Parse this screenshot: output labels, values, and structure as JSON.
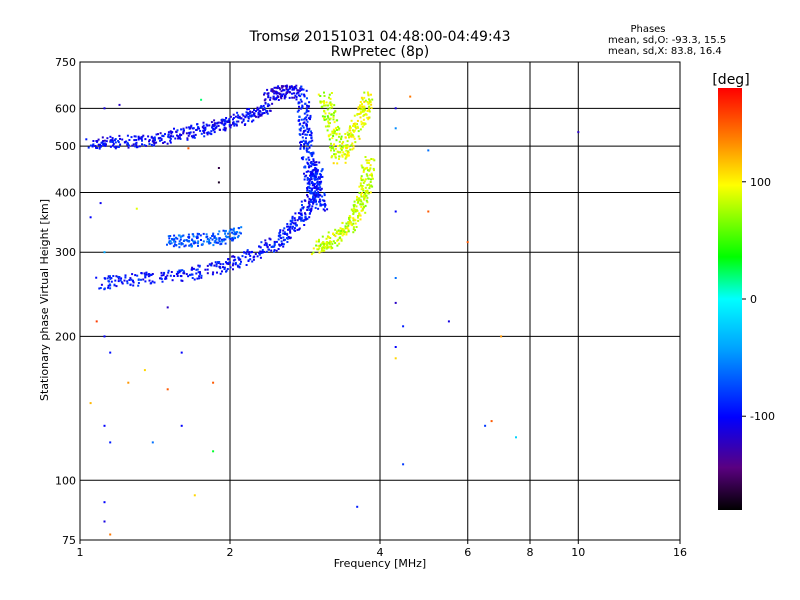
{
  "chart_data": {
    "type": "scatter",
    "title": "Tromsø 20151031 04:48:00-04:49:43",
    "subtitle": "RwPretec (8p)",
    "xlabel": "Frequency [MHz]",
    "ylabel": "Stationary phase Virtual Height [km]",
    "x_scale": "log",
    "y_scale": "log",
    "xlim": [
      1,
      16
    ],
    "ylim": [
      75,
      750
    ],
    "x_ticks": [
      "1",
      "2",
      "4",
      "6",
      "8",
      "10",
      "16"
    ],
    "y_ticks": [
      "75",
      "100",
      "200",
      "300",
      "400",
      "500",
      "600",
      "750"
    ],
    "grid": true,
    "phase_stats": {
      "header": "Phases",
      "o_line": "mean, sd,O: -93.3, 15.5",
      "x_line": "mean, sd,X:  83.8, 16.4"
    },
    "colorbar": {
      "label": "[deg]",
      "ticks": [
        "100",
        "0",
        "-100"
      ],
      "tick_values": [
        100,
        0,
        -100
      ],
      "range": [
        -180,
        180
      ]
    },
    "traces": [
      {
        "name": "",
        "x": [
          1.05,
          1.2,
          1.4,
          1.6,
          1.8,
          2.0,
          2.2,
          2.4
        ],
        "y": [
          505,
          510,
          515,
          530,
          545,
          560,
          580,
          600
        ],
        "phase": -100
      },
      {
        "name": "",
        "x": [
          2.4,
          2.55,
          2.75
        ],
        "y": [
          640,
          650,
          650
        ],
        "phase": -110
      },
      {
        "name": "",
        "x": [
          2.8,
          2.82,
          2.85,
          2.9,
          2.98,
          3.05
        ],
        "y": [
          650,
          560,
          500,
          440,
          400,
          375
        ],
        "phase": -90
      },
      {
        "name": "",
        "x": [
          1.1,
          1.3,
          1.6,
          1.9,
          2.2,
          2.5,
          2.7,
          2.85,
          2.95,
          3.0
        ],
        "y": [
          258,
          263,
          268,
          278,
          295,
          315,
          340,
          370,
          410,
          460
        ],
        "phase": -95
      },
      {
        "name": "",
        "x": [
          3.0,
          3.2,
          3.45,
          3.65,
          3.75,
          3.8
        ],
        "y": [
          305,
          318,
          340,
          370,
          410,
          470
        ],
        "phase": 85
      },
      {
        "name": "",
        "x": [
          3.3,
          3.5,
          3.7,
          3.8
        ],
        "y": [
          470,
          520,
          580,
          640
        ],
        "phase": 90
      },
      {
        "name": "",
        "x": [
          3.1,
          3.2,
          3.3
        ],
        "y": [
          640,
          560,
          480
        ],
        "phase": 80
      },
      {
        "name": "",
        "x": [
          1.5,
          1.7,
          1.9,
          2.1
        ],
        "y": [
          315,
          318,
          320,
          330
        ],
        "phase": -70
      }
    ],
    "scatter_points": [
      {
        "x": 1.12,
        "y": 600,
        "phase": -110
      },
      {
        "x": 1.2,
        "y": 610,
        "phase": -120
      },
      {
        "x": 1.05,
        "y": 355,
        "phase": -100
      },
      {
        "x": 1.1,
        "y": 380,
        "phase": -105
      },
      {
        "x": 1.12,
        "y": 300,
        "phase": -40
      },
      {
        "x": 1.08,
        "y": 215,
        "phase": 160
      },
      {
        "x": 1.12,
        "y": 200,
        "phase": -100
      },
      {
        "x": 1.15,
        "y": 185,
        "phase": -95
      },
      {
        "x": 1.25,
        "y": 160,
        "phase": 130
      },
      {
        "x": 1.35,
        "y": 170,
        "phase": 110
      },
      {
        "x": 1.5,
        "y": 155,
        "phase": 150
      },
      {
        "x": 1.05,
        "y": 145,
        "phase": 120
      },
      {
        "x": 1.12,
        "y": 130,
        "phase": -100
      },
      {
        "x": 1.15,
        "y": 120,
        "phase": -90
      },
      {
        "x": 1.4,
        "y": 120,
        "phase": -60
      },
      {
        "x": 1.6,
        "y": 130,
        "phase": -100
      },
      {
        "x": 1.6,
        "y": 185,
        "phase": -100
      },
      {
        "x": 1.85,
        "y": 115,
        "phase": 30
      },
      {
        "x": 1.12,
        "y": 90,
        "phase": -100
      },
      {
        "x": 1.12,
        "y": 82,
        "phase": -110
      },
      {
        "x": 1.15,
        "y": 77,
        "phase": 140
      },
      {
        "x": 1.7,
        "y": 93,
        "phase": 110
      },
      {
        "x": 1.5,
        "y": 230,
        "phase": -120
      },
      {
        "x": 1.85,
        "y": 160,
        "phase": 150
      },
      {
        "x": 1.3,
        "y": 370,
        "phase": 90
      },
      {
        "x": 1.65,
        "y": 495,
        "phase": 150
      },
      {
        "x": 1.75,
        "y": 625,
        "phase": 20
      },
      {
        "x": 1.9,
        "y": 450,
        "phase": -160
      },
      {
        "x": 1.9,
        "y": 420,
        "phase": -170
      },
      {
        "x": 3.6,
        "y": 88,
        "phase": -90
      },
      {
        "x": 4.3,
        "y": 600,
        "phase": -110
      },
      {
        "x": 4.3,
        "y": 545,
        "phase": -50
      },
      {
        "x": 4.3,
        "y": 365,
        "phase": -100
      },
      {
        "x": 4.3,
        "y": 265,
        "phase": -60
      },
      {
        "x": 4.3,
        "y": 235,
        "phase": -120
      },
      {
        "x": 4.3,
        "y": 190,
        "phase": -100
      },
      {
        "x": 4.3,
        "y": 180,
        "phase": 110
      },
      {
        "x": 4.45,
        "y": 210,
        "phase": -90
      },
      {
        "x": 4.45,
        "y": 108,
        "phase": -80
      },
      {
        "x": 4.6,
        "y": 635,
        "phase": 140
      },
      {
        "x": 5.0,
        "y": 490,
        "phase": -60
      },
      {
        "x": 5.0,
        "y": 365,
        "phase": 150
      },
      {
        "x": 5.5,
        "y": 215,
        "phase": -110
      },
      {
        "x": 6.0,
        "y": 315,
        "phase": 150
      },
      {
        "x": 6.5,
        "y": 130,
        "phase": -80
      },
      {
        "x": 6.7,
        "y": 133,
        "phase": 150
      },
      {
        "x": 7.0,
        "y": 200,
        "phase": 130
      },
      {
        "x": 7.5,
        "y": 123,
        "phase": -20
      },
      {
        "x": 10.0,
        "y": 535,
        "phase": -120
      }
    ]
  }
}
